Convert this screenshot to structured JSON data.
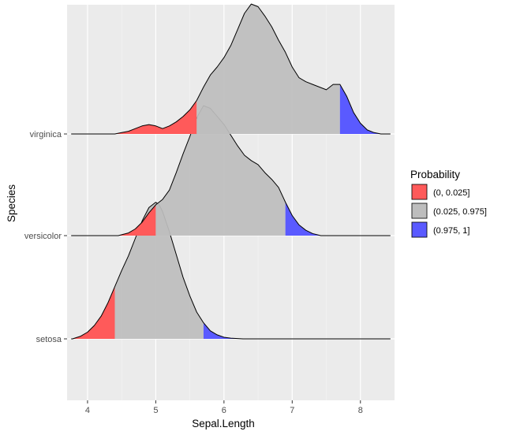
{
  "chart_data": {
    "type": "ridgeline-density",
    "xlabel": "Sepal.Length",
    "ylabel": "Species",
    "xlim": [
      3.7,
      8.5
    ],
    "x_ticks": [
      "4",
      "5",
      "6",
      "7",
      "8"
    ],
    "x_tick_values": [
      4,
      5,
      6,
      7,
      8
    ],
    "categories": [
      "setosa",
      "versicolor",
      "virginica"
    ],
    "grid": true,
    "legend": {
      "title": "Probability",
      "position": "right",
      "entries": [
        {
          "label": "(0, 0.025]",
          "color": "#FF5A5A"
        },
        {
          "label": "(0.025, 0.975]",
          "color": "#BDBDBD"
        },
        {
          "label": "(0.975, 1]",
          "color": "#5A5AFF"
        }
      ]
    },
    "series": [
      {
        "name": "setosa",
        "q_low": 4.4,
        "q_high": 5.7,
        "x": [
          3.78,
          3.9,
          4.0,
          4.1,
          4.2,
          4.3,
          4.4,
          4.5,
          4.6,
          4.7,
          4.8,
          4.9,
          5.0,
          5.05,
          5.1,
          5.2,
          5.3,
          5.4,
          5.5,
          5.6,
          5.7,
          5.8,
          5.9,
          6.0,
          6.1,
          6.2,
          6.28
        ],
        "density": [
          0.0,
          0.02,
          0.05,
          0.1,
          0.17,
          0.27,
          0.39,
          0.51,
          0.62,
          0.75,
          0.88,
          0.98,
          1.02,
          1.0,
          0.95,
          0.8,
          0.63,
          0.46,
          0.32,
          0.2,
          0.12,
          0.06,
          0.03,
          0.012,
          0.005,
          0.002,
          0.0
        ]
      },
      {
        "name": "versicolor",
        "q_low": 5.0,
        "q_high": 6.9,
        "x": [
          4.45,
          4.6,
          4.7,
          4.8,
          4.9,
          5.0,
          5.1,
          5.2,
          5.3,
          5.4,
          5.5,
          5.6,
          5.7,
          5.8,
          5.9,
          6.0,
          6.1,
          6.2,
          6.3,
          6.4,
          6.5,
          6.6,
          6.7,
          6.8,
          6.9,
          7.0,
          7.1,
          7.2,
          7.3,
          7.42
        ],
        "density": [
          0.0,
          0.02,
          0.05,
          0.1,
          0.17,
          0.23,
          0.27,
          0.34,
          0.47,
          0.61,
          0.74,
          0.88,
          0.97,
          0.95,
          0.89,
          0.83,
          0.75,
          0.67,
          0.6,
          0.56,
          0.53,
          0.47,
          0.42,
          0.36,
          0.25,
          0.15,
          0.08,
          0.04,
          0.015,
          0.0
        ]
      },
      {
        "name": "virginica",
        "q_low": 5.6,
        "q_high": 7.7,
        "x": [
          4.4,
          4.5,
          4.6,
          4.7,
          4.8,
          4.9,
          5.0,
          5.1,
          5.2,
          5.3,
          5.4,
          5.5,
          5.6,
          5.7,
          5.8,
          5.9,
          6.0,
          6.1,
          6.2,
          6.3,
          6.4,
          6.5,
          6.6,
          6.7,
          6.8,
          6.9,
          7.0,
          7.1,
          7.2,
          7.3,
          7.4,
          7.5,
          7.6,
          7.7,
          7.8,
          7.9,
          8.0,
          8.1,
          8.2,
          8.3
        ],
        "density": [
          0.0,
          0.01,
          0.02,
          0.04,
          0.06,
          0.07,
          0.06,
          0.04,
          0.06,
          0.09,
          0.13,
          0.18,
          0.25,
          0.35,
          0.44,
          0.5,
          0.57,
          0.66,
          0.78,
          0.9,
          0.97,
          0.95,
          0.88,
          0.8,
          0.7,
          0.61,
          0.5,
          0.42,
          0.39,
          0.37,
          0.35,
          0.33,
          0.37,
          0.37,
          0.28,
          0.16,
          0.08,
          0.03,
          0.01,
          0.0
        ]
      }
    ]
  }
}
